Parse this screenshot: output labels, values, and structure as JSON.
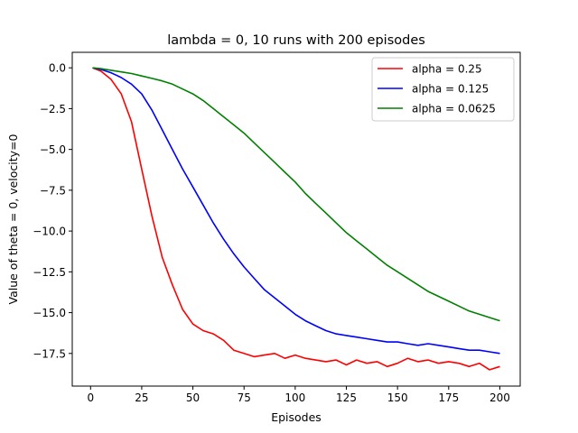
{
  "chart_data": {
    "type": "line",
    "title": "lambda = 0, 10 runs with 200 episodes",
    "xlabel": "Episodes",
    "ylabel": "Value of theta = 0, velocity=0",
    "xlim": [
      -8.95,
      209.95
    ],
    "ylim": [
      -19.5,
      0.95
    ],
    "xticks": [
      0,
      25,
      50,
      75,
      100,
      125,
      150,
      175,
      200
    ],
    "xtick_labels": [
      "0",
      "25",
      "50",
      "75",
      "100",
      "125",
      "150",
      "175",
      "200"
    ],
    "yticks": [
      0,
      -2.5,
      -5,
      -7.5,
      -10,
      -12.5,
      -15,
      -17.5
    ],
    "ytick_labels": [
      "0.0",
      "−2.5",
      "−5.0",
      "−7.5",
      "−10.0",
      "−12.5",
      "−15.0",
      "−17.5"
    ],
    "grid": false,
    "legend_position": "top-right",
    "series": [
      {
        "name": "alpha = 0.25",
        "color": "#ff0000",
        "x": [
          1,
          5,
          10,
          15,
          20,
          25,
          30,
          35,
          40,
          45,
          50,
          55,
          60,
          65,
          70,
          75,
          80,
          85,
          90,
          95,
          100,
          105,
          110,
          115,
          120,
          125,
          130,
          135,
          140,
          145,
          150,
          155,
          160,
          165,
          170,
          175,
          180,
          185,
          190,
          195,
          200
        ],
        "y": [
          0,
          -0.2,
          -0.7,
          -1.6,
          -3.3,
          -6.2,
          -9.1,
          -11.6,
          -13.3,
          -14.8,
          -15.7,
          -16.1,
          -16.3,
          -16.7,
          -17.3,
          -17.5,
          -17.7,
          -17.6,
          -17.5,
          -17.8,
          -17.6,
          -17.8,
          -17.9,
          -18.0,
          -17.9,
          -18.2,
          -17.9,
          -18.1,
          -18.0,
          -18.3,
          -18.1,
          -17.8,
          -18.0,
          -17.9,
          -18.1,
          -18.0,
          -18.1,
          -18.3,
          -18.1,
          -18.5,
          -18.3
        ]
      },
      {
        "name": "alpha = 0.125",
        "color": "#0000ff",
        "x": [
          1,
          5,
          10,
          15,
          20,
          25,
          30,
          35,
          40,
          45,
          50,
          55,
          60,
          65,
          70,
          75,
          80,
          85,
          90,
          95,
          100,
          105,
          110,
          115,
          120,
          125,
          130,
          135,
          140,
          145,
          150,
          155,
          160,
          165,
          170,
          175,
          180,
          185,
          190,
          195,
          200
        ],
        "y": [
          0,
          -0.1,
          -0.3,
          -0.6,
          -1.0,
          -1.6,
          -2.6,
          -3.8,
          -5.0,
          -6.2,
          -7.3,
          -8.4,
          -9.5,
          -10.5,
          -11.4,
          -12.2,
          -12.9,
          -13.6,
          -14.1,
          -14.6,
          -15.1,
          -15.5,
          -15.8,
          -16.1,
          -16.3,
          -16.4,
          -16.5,
          -16.6,
          -16.7,
          -16.8,
          -16.8,
          -16.9,
          -17.0,
          -16.9,
          -17.0,
          -17.1,
          -17.2,
          -17.3,
          -17.3,
          -17.4,
          -17.5
        ]
      },
      {
        "name": "alpha = 0.0625",
        "color": "#008000",
        "x": [
          1,
          5,
          10,
          15,
          20,
          25,
          30,
          35,
          40,
          45,
          50,
          55,
          60,
          65,
          70,
          75,
          80,
          85,
          90,
          95,
          100,
          105,
          110,
          115,
          120,
          125,
          130,
          135,
          140,
          145,
          150,
          155,
          160,
          165,
          170,
          175,
          180,
          185,
          190,
          195,
          200
        ],
        "y": [
          0,
          -0.05,
          -0.15,
          -0.25,
          -0.35,
          -0.5,
          -0.65,
          -0.8,
          -1.0,
          -1.3,
          -1.6,
          -2.0,
          -2.5,
          -3.0,
          -3.5,
          -4.0,
          -4.6,
          -5.2,
          -5.8,
          -6.4,
          -7.0,
          -7.7,
          -8.3,
          -8.9,
          -9.5,
          -10.1,
          -10.6,
          -11.1,
          -11.6,
          -12.1,
          -12.5,
          -12.9,
          -13.3,
          -13.7,
          -14.0,
          -14.3,
          -14.6,
          -14.9,
          -15.1,
          -15.3,
          -15.5
        ]
      }
    ]
  }
}
